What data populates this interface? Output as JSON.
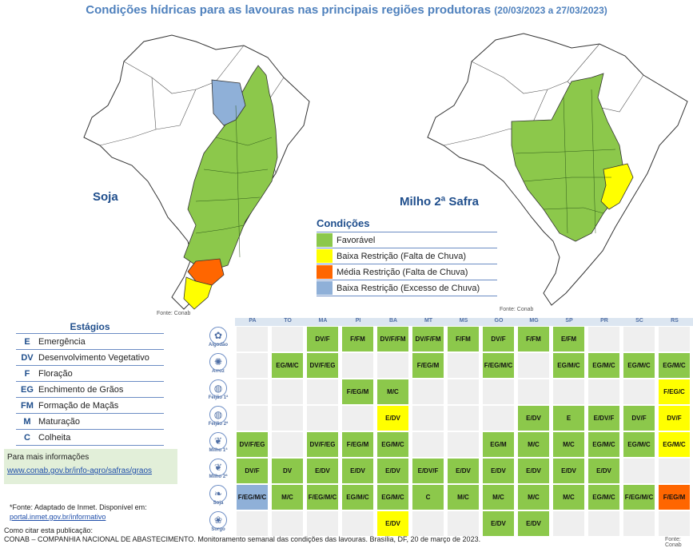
{
  "title": "Condições hídricas para as lavouras nas principais regiões produtoras",
  "date_range": "(20/03/2023 a 27/03/2023)",
  "maps": {
    "left_label": "Soja",
    "right_label": "Milho 2ª Safra",
    "source_left": "Fonte: Conab",
    "source_right": "Fonte: Conab"
  },
  "colors": {
    "favoravel": "#8cc84b",
    "baixa_falta": "#ffff00",
    "media_falta": "#ff6600",
    "baixa_excesso": "#8fb0d8",
    "empty": "#efefef",
    "title_blue": "#4f81bd"
  },
  "legend": {
    "title": "Condições",
    "items": [
      {
        "label": "Favorável",
        "color": "#8cc84b"
      },
      {
        "label": "Baixa Restrição (Falta de Chuva)",
        "color": "#ffff00"
      },
      {
        "label": "Média Restrição (Falta de Chuva)",
        "color": "#ff6600"
      },
      {
        "label": "Baixa Restrição (Excesso de Chuva)",
        "color": "#8fb0d8"
      }
    ]
  },
  "stages": {
    "title": "Estágios",
    "items": [
      {
        "code": "E",
        "name": "Emergência"
      },
      {
        "code": "DV",
        "name": "Desenvolvimento Vegetativo"
      },
      {
        "code": "F",
        "name": "Floração"
      },
      {
        "code": "EG",
        "name": "Enchimento de Grãos"
      },
      {
        "code": "FM",
        "name": "Formação de Maçãs"
      },
      {
        "code": "M",
        "name": "Maturação"
      },
      {
        "code": "C",
        "name": "Colheita"
      }
    ]
  },
  "info": {
    "text": "Para mais informações",
    "link": "www.conab.gov.br/info-agro/safras/graos"
  },
  "footer": {
    "source_note": "*Fonte: Adaptado de Inmet. Disponível em:",
    "source_link": "portal.inmet.gov.br/informativo",
    "cite_label": "Como citar esta publicação:",
    "citation": "CONAB – COMPANHIA NACIONAL DE ABASTECIMENTO. Monitoramento semanal das condições das lavouras. Brasília, DF, 20 de março de 2023.",
    "table_source": "Fonte: Conab"
  },
  "chart_data": {
    "type": "table",
    "columns": [
      "PA",
      "TO",
      "MA",
      "PI",
      "BA",
      "MT",
      "MS",
      "GO",
      "MG",
      "SP",
      "PR",
      "SC",
      "RS"
    ],
    "rows": [
      {
        "crop": "Algodão",
        "icon": "cotton-icon",
        "cells": [
          [
            "",
            ""
          ],
          [
            "",
            ""
          ],
          [
            "DV/F",
            "fav"
          ],
          [
            "F/FM",
            "fav"
          ],
          [
            "DV/F/FM",
            "fav"
          ],
          [
            "DV/F/FM",
            "fav"
          ],
          [
            "F/FM",
            "fav"
          ],
          [
            "DV/F",
            "fav"
          ],
          [
            "F/FM",
            "fav"
          ],
          [
            "E/FM",
            "fav"
          ],
          [
            "",
            ""
          ],
          [
            "",
            ""
          ],
          [
            "",
            ""
          ]
        ]
      },
      {
        "crop": "Arroz",
        "icon": "rice-icon",
        "cells": [
          [
            "",
            ""
          ],
          [
            "EG/M/C",
            "fav"
          ],
          [
            "DV/F/EG",
            "fav"
          ],
          [
            "",
            ""
          ],
          [
            "",
            ""
          ],
          [
            "F/EG/M",
            "fav"
          ],
          [
            "",
            ""
          ],
          [
            "F/EG/M/C",
            "fav"
          ],
          [
            "",
            ""
          ],
          [
            "EG/M/C",
            "fav"
          ],
          [
            "EG/M/C",
            "fav"
          ],
          [
            "EG/M/C",
            "fav"
          ],
          [
            "EG/M/C",
            "fav"
          ]
        ]
      },
      {
        "crop": "Feijão 1ª",
        "icon": "bean-icon",
        "cells": [
          [
            "",
            ""
          ],
          [
            "",
            ""
          ],
          [
            "",
            ""
          ],
          [
            "F/EG/M",
            "fav"
          ],
          [
            "M/C",
            "fav"
          ],
          [
            "",
            ""
          ],
          [
            "",
            ""
          ],
          [
            "",
            ""
          ],
          [
            "",
            ""
          ],
          [
            "",
            ""
          ],
          [
            "",
            ""
          ],
          [
            "",
            ""
          ],
          [
            "F/EG/C",
            "baixa_falta"
          ]
        ]
      },
      {
        "crop": "Feijão 2ª",
        "icon": "bean-icon",
        "cells": [
          [
            "",
            ""
          ],
          [
            "",
            ""
          ],
          [
            "",
            ""
          ],
          [
            "",
            ""
          ],
          [
            "E/DV",
            "baixa_falta"
          ],
          [
            "",
            ""
          ],
          [
            "",
            ""
          ],
          [
            "",
            ""
          ],
          [
            "E/DV",
            "fav"
          ],
          [
            "E",
            "fav"
          ],
          [
            "E/DV/F",
            "fav"
          ],
          [
            "DV/F",
            "fav"
          ],
          [
            "DV/F",
            "baixa_falta"
          ]
        ]
      },
      {
        "crop": "Milho 1ª",
        "icon": "corn-icon",
        "cells": [
          [
            "DV/F/EG",
            "fav"
          ],
          [
            "",
            ""
          ],
          [
            "DV/F/EG",
            "fav"
          ],
          [
            "F/EG/M",
            "fav"
          ],
          [
            "EG/M/C",
            "fav"
          ],
          [
            "",
            ""
          ],
          [
            "",
            ""
          ],
          [
            "EG/M",
            "fav"
          ],
          [
            "M/C",
            "fav"
          ],
          [
            "M/C",
            "fav"
          ],
          [
            "EG/M/C",
            "fav"
          ],
          [
            "EG/M/C",
            "fav"
          ],
          [
            "EG/M/C",
            "baixa_falta"
          ]
        ]
      },
      {
        "crop": "Milho 2ª",
        "icon": "corn-icon",
        "cells": [
          [
            "DV/F",
            "fav"
          ],
          [
            "DV",
            "fav"
          ],
          [
            "E/DV",
            "fav"
          ],
          [
            "E/DV",
            "fav"
          ],
          [
            "E/DV",
            "fav"
          ],
          [
            "E/DV/F",
            "fav"
          ],
          [
            "E/DV",
            "fav"
          ],
          [
            "E/DV",
            "fav"
          ],
          [
            "E/DV",
            "fav"
          ],
          [
            "E/DV",
            "fav"
          ],
          [
            "E/DV",
            "fav"
          ],
          [
            "",
            ""
          ],
          [
            "",
            ""
          ]
        ]
      },
      {
        "crop": "Soja",
        "icon": "soy-icon",
        "cells": [
          [
            "F/EG/M/C",
            "baixa_excesso"
          ],
          [
            "M/C",
            "fav"
          ],
          [
            "F/EG/M/C",
            "fav"
          ],
          [
            "EG/M/C",
            "fav"
          ],
          [
            "EG/M/C",
            "fav"
          ],
          [
            "C",
            "fav"
          ],
          [
            "M/C",
            "fav"
          ],
          [
            "M/C",
            "fav"
          ],
          [
            "M/C",
            "fav"
          ],
          [
            "M/C",
            "fav"
          ],
          [
            "EG/M/C",
            "fav"
          ],
          [
            "F/EG/M/C",
            "fav"
          ],
          [
            "F/EG/M",
            "media_falta"
          ]
        ]
      },
      {
        "crop": "Sorgo",
        "icon": "sorghum-icon",
        "cells": [
          [
            "",
            ""
          ],
          [
            "",
            ""
          ],
          [
            "",
            ""
          ],
          [
            "",
            ""
          ],
          [
            "E/DV",
            "baixa_falta"
          ],
          [
            "",
            ""
          ],
          [
            "",
            ""
          ],
          [
            "E/DV",
            "fav"
          ],
          [
            "E/DV",
            "fav"
          ],
          [
            "",
            ""
          ],
          [
            "",
            ""
          ],
          [
            "",
            ""
          ],
          [
            "",
            ""
          ]
        ]
      }
    ]
  }
}
